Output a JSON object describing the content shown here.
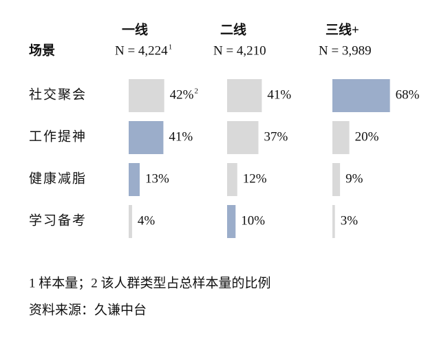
{
  "chart_data": {
    "type": "bar",
    "orientation": "horizontal",
    "category_header": "场景",
    "categories": [
      "社交聚会",
      "工作提神",
      "健康减脂",
      "学习备考"
    ],
    "xlim": [
      0,
      100
    ],
    "series": [
      {
        "name": "一线",
        "n_label": "N = 4,224",
        "n_note": "1",
        "values": [
          42,
          41,
          13,
          4
        ],
        "value_labels": [
          "42%",
          "41%",
          "13%",
          "4%"
        ],
        "value_notes": [
          "2",
          null,
          null,
          null
        ],
        "colors": [
          "#d9d9d9",
          "#9badca",
          "#9badca",
          "#d9d9d9"
        ]
      },
      {
        "name": "二线",
        "n_label": "N = 4,210",
        "values": [
          41,
          37,
          12,
          10
        ],
        "value_labels": [
          "41%",
          "37%",
          "12%",
          "10%"
        ],
        "colors": [
          "#d9d9d9",
          "#d9d9d9",
          "#d9d9d9",
          "#9badca"
        ]
      },
      {
        "name": "三线+",
        "n_label": "N = 3,989",
        "values": [
          68,
          20,
          9,
          3
        ],
        "value_labels": [
          "68%",
          "20%",
          "9%",
          "3%"
        ],
        "colors": [
          "#9badca",
          "#d9d9d9",
          "#d9d9d9",
          "#d9d9d9"
        ]
      }
    ],
    "footnotes": [
      "1 样本量；2 该人群类型占总样本量的比例",
      "资料来源：久谦中台"
    ]
  }
}
